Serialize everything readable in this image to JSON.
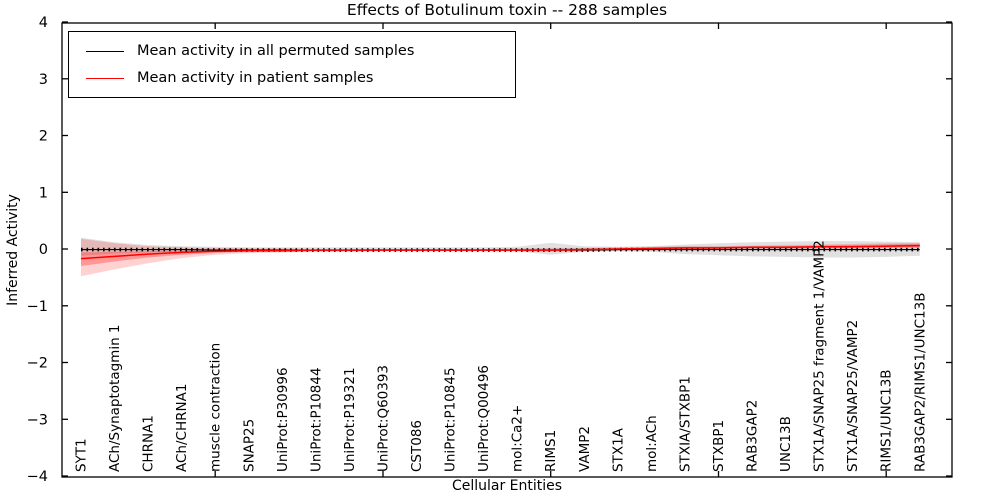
{
  "chart_data": {
    "type": "line",
    "title": "Effects of Botulinum toxin -- 288 samples",
    "xlabel": "Cellular Entities",
    "ylabel": "Inferred Activity",
    "ylim": [
      -4,
      4
    ],
    "y_ticks": [
      4,
      3,
      2,
      1,
      0,
      -1,
      -2,
      -3,
      -4
    ],
    "x_major_tick_indices": [
      4,
      9,
      14,
      19,
      24
    ],
    "grid": false,
    "legend_position": "upper left",
    "categories": [
      "SYT1",
      "ACh/Synaptotagmin 1",
      "CHRNA1",
      "ACh/CHRNA1",
      "muscle contraction",
      "SNAP25",
      "UniProt:P30996",
      "UniProt:P10844",
      "UniProt:P19321",
      "UniProt:Q60393",
      "CST086",
      "UniProt:P10845",
      "UniProt:Q00496",
      "mol:Ca2+",
      "RIMS1",
      "VAMP2",
      "STX1A",
      "mol:ACh",
      "STXIA/STXBP1",
      "STXBP1",
      "RAB3GAP2",
      "UNC13B",
      "STX1A/SNAP25 fragment 1/VAMP2",
      "STX1A/SNAP25/VAMP2",
      "RIMS1/UNC13B",
      "RAB3GAP2/RIMS1/UNC13B"
    ],
    "series": [
      {
        "name": "Mean activity in all permuted samples",
        "color": "#000000",
        "style": "solid-with-tick-markers",
        "values": [
          -0.01,
          -0.01,
          -0.01,
          -0.01,
          -0.02,
          -0.02,
          -0.02,
          -0.02,
          -0.02,
          -0.02,
          -0.02,
          -0.02,
          -0.02,
          -0.02,
          -0.02,
          -0.02,
          -0.01,
          -0.01,
          -0.01,
          -0.01,
          -0.01,
          -0.01,
          -0.01,
          -0.01,
          -0.01,
          -0.01
        ]
      },
      {
        "name": "Mean activity in patient samples",
        "color": "#ff0000",
        "style": "solid",
        "values": [
          -0.17,
          -0.13,
          -0.09,
          -0.06,
          -0.04,
          -0.03,
          -0.03,
          -0.02,
          -0.02,
          -0.02,
          -0.02,
          -0.02,
          -0.02,
          -0.02,
          -0.02,
          -0.01,
          0.0,
          0.01,
          0.02,
          0.02,
          0.03,
          0.03,
          0.04,
          0.04,
          0.05,
          0.06
        ]
      }
    ],
    "bands": [
      {
        "name": "permuted-samples-range",
        "color": "#000000",
        "opacity": 0.12,
        "lo": [
          -0.12,
          -0.08,
          -0.06,
          -0.05,
          -0.04,
          -0.04,
          -0.03,
          -0.03,
          -0.03,
          -0.03,
          -0.03,
          -0.03,
          -0.03,
          -0.04,
          -0.1,
          -0.05,
          -0.04,
          -0.05,
          -0.09,
          -0.11,
          -0.13,
          -0.14,
          -0.15,
          -0.15,
          -0.14,
          -0.12
        ],
        "hi": [
          0.2,
          0.12,
          0.07,
          0.05,
          0.04,
          0.03,
          0.03,
          0.03,
          0.03,
          0.03,
          0.03,
          0.03,
          0.03,
          0.04,
          0.11,
          0.05,
          0.04,
          0.05,
          0.08,
          0.1,
          0.12,
          0.13,
          0.14,
          0.14,
          0.13,
          0.12
        ]
      },
      {
        "name": "patient-samples-range-outer",
        "color": "#ff0000",
        "opacity": 0.18,
        "lo": [
          -0.48,
          -0.36,
          -0.25,
          -0.16,
          -0.1,
          -0.07,
          -0.06,
          -0.05,
          -0.05,
          -0.04,
          -0.04,
          -0.04,
          -0.04,
          -0.04,
          -0.05,
          -0.04,
          -0.03,
          -0.02,
          -0.02,
          -0.01,
          -0.01,
          0.0,
          0.0,
          0.0,
          0.01,
          0.01
        ],
        "hi": [
          0.18,
          0.1,
          0.05,
          0.03,
          0.02,
          0.01,
          0.01,
          0.0,
          0.0,
          0.0,
          0.0,
          0.0,
          0.0,
          0.01,
          0.02,
          0.02,
          0.03,
          0.04,
          0.05,
          0.05,
          0.06,
          0.07,
          0.08,
          0.09,
          0.1,
          0.11
        ]
      },
      {
        "name": "patient-samples-range-inner",
        "color": "#ff0000",
        "opacity": 0.28,
        "lo": [
          -0.3,
          -0.22,
          -0.15,
          -0.1,
          -0.07,
          -0.05,
          -0.05,
          -0.04,
          -0.04,
          -0.03,
          -0.03,
          -0.03,
          -0.03,
          -0.03,
          -0.03,
          -0.03,
          -0.02,
          -0.01,
          0.0,
          0.0,
          0.01,
          0.01,
          0.02,
          0.02,
          0.03,
          0.03
        ],
        "hi": [
          -0.06,
          -0.05,
          -0.04,
          -0.03,
          -0.02,
          -0.01,
          -0.01,
          -0.01,
          -0.01,
          0.0,
          0.0,
          0.0,
          0.0,
          0.0,
          0.0,
          0.01,
          0.01,
          0.02,
          0.04,
          0.04,
          0.05,
          0.05,
          0.06,
          0.07,
          0.08,
          0.09
        ]
      }
    ]
  },
  "legend": {
    "items": [
      {
        "label": "Mean activity in all permuted samples",
        "color": "#000000"
      },
      {
        "label": "Mean activity in patient samples",
        "color": "#ff0000"
      }
    ]
  }
}
